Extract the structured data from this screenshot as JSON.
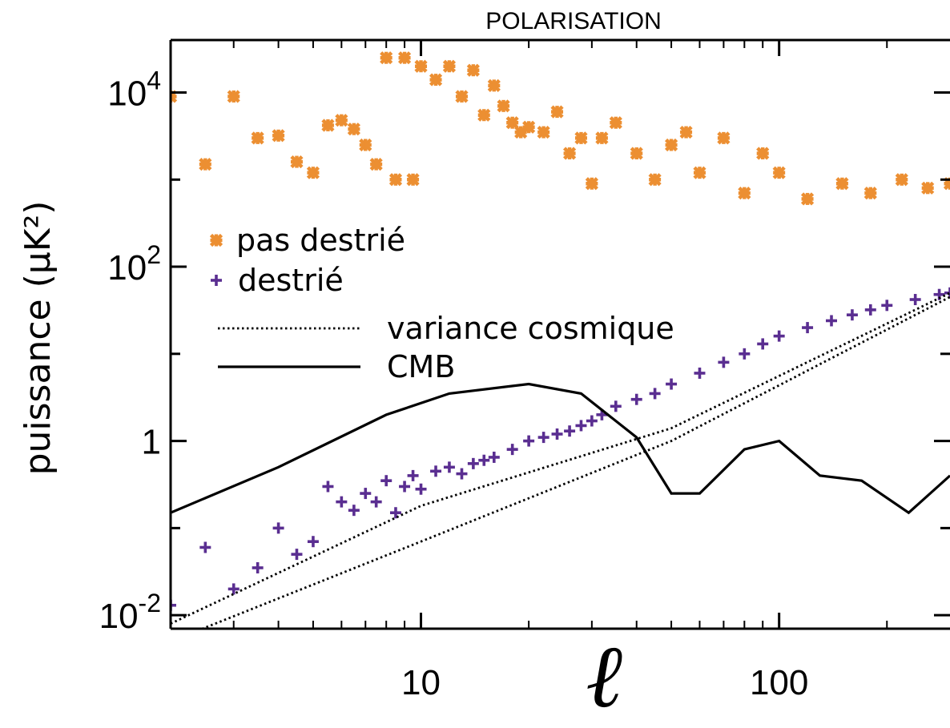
{
  "chart_data": {
    "type": "scatter",
    "title": "POLARISATION",
    "xlabel": "ℓ",
    "ylabel": "puissance (μK²)",
    "xscale": "log",
    "yscale": "log",
    "xlim": [
      2,
      300
    ],
    "ylim": [
      0.007,
      40000
    ],
    "grid": false,
    "legend_position": "left",
    "xticks": [
      {
        "value": 10,
        "label": "10"
      },
      {
        "value": 100,
        "label": "100"
      }
    ],
    "yticks": [
      {
        "value": 0.01,
        "base": "10",
        "exp": "-2"
      },
      {
        "value": 1,
        "base": "1",
        "exp": ""
      },
      {
        "value": 100,
        "base": "10",
        "exp": "2"
      },
      {
        "value": 10000,
        "base": "10",
        "exp": "4"
      }
    ],
    "yminor": [
      0.1,
      10,
      1000
    ],
    "series": [
      {
        "name": "pas destrié",
        "kind": "scatter",
        "marker": "asterisk",
        "color": "#ec8f32",
        "points": [
          [
            2,
            9000
          ],
          [
            2.5,
            1500
          ],
          [
            3,
            9000
          ],
          [
            3.5,
            3000
          ],
          [
            4,
            3200
          ],
          [
            4.5,
            1600
          ],
          [
            5,
            1200
          ],
          [
            5.5,
            4200
          ],
          [
            6,
            4800
          ],
          [
            6.5,
            3800
          ],
          [
            7,
            2500
          ],
          [
            7.5,
            1500
          ],
          [
            8,
            25000
          ],
          [
            8.5,
            1000
          ],
          [
            9,
            25000
          ],
          [
            9.5,
            1000
          ],
          [
            10,
            20000
          ],
          [
            11,
            14000
          ],
          [
            12,
            20000
          ],
          [
            13,
            9000
          ],
          [
            14,
            18000
          ],
          [
            15,
            5500
          ],
          [
            16,
            12000
          ],
          [
            17,
            7000
          ],
          [
            18,
            4500
          ],
          [
            19,
            3500
          ],
          [
            20,
            4000
          ],
          [
            22,
            3500
          ],
          [
            24,
            6000
          ],
          [
            26,
            2000
          ],
          [
            28,
            3000
          ],
          [
            30,
            900
          ],
          [
            32,
            3000
          ],
          [
            35,
            4500
          ],
          [
            40,
            2000
          ],
          [
            45,
            1000
          ],
          [
            50,
            2500
          ],
          [
            55,
            3500
          ],
          [
            60,
            1200
          ],
          [
            70,
            3000
          ],
          [
            80,
            700
          ],
          [
            90,
            2000
          ],
          [
            100,
            1200
          ],
          [
            120,
            600
          ],
          [
            150,
            900
          ],
          [
            180,
            700
          ],
          [
            220,
            1000
          ],
          [
            260,
            800
          ],
          [
            300,
            900
          ]
        ]
      },
      {
        "name": "destrié",
        "kind": "scatter",
        "marker": "plus",
        "color": "#5a2e91",
        "points": [
          [
            2,
            0.013
          ],
          [
            2.5,
            0.06
          ],
          [
            3,
            0.02
          ],
          [
            3.5,
            0.035
          ],
          [
            4,
            0.1
          ],
          [
            4.5,
            0.05
          ],
          [
            5,
            0.07
          ],
          [
            5.5,
            0.3
          ],
          [
            6,
            0.2
          ],
          [
            6.5,
            0.16
          ],
          [
            7,
            0.25
          ],
          [
            7.5,
            0.2
          ],
          [
            8,
            0.35
          ],
          [
            8.5,
            0.15
          ],
          [
            9,
            0.3
          ],
          [
            9.5,
            0.4
          ],
          [
            10,
            0.28
          ],
          [
            11,
            0.45
          ],
          [
            12,
            0.5
          ],
          [
            13,
            0.42
          ],
          [
            14,
            0.55
          ],
          [
            15,
            0.6
          ],
          [
            16,
            0.65
          ],
          [
            18,
            0.8
          ],
          [
            20,
            1.0
          ],
          [
            22,
            1.1
          ],
          [
            24,
            1.2
          ],
          [
            26,
            1.3
          ],
          [
            28,
            1.5
          ],
          [
            30,
            1.7
          ],
          [
            32,
            2.0
          ],
          [
            35,
            2.5
          ],
          [
            40,
            3.0
          ],
          [
            45,
            3.5
          ],
          [
            50,
            4.5
          ],
          [
            60,
            6.0
          ],
          [
            70,
            8.0
          ],
          [
            80,
            10
          ],
          [
            90,
            13
          ],
          [
            100,
            16
          ],
          [
            120,
            20
          ],
          [
            140,
            24
          ],
          [
            160,
            28
          ],
          [
            180,
            32
          ],
          [
            200,
            36
          ],
          [
            240,
            42
          ],
          [
            280,
            48
          ],
          [
            300,
            50
          ]
        ]
      },
      {
        "name": "variance cosmique",
        "kind": "line",
        "style": "dotted",
        "color": "#000000",
        "points": [
          [
            2,
            0.008
          ],
          [
            10,
            0.18
          ],
          [
            50,
            1.4
          ],
          [
            300,
            50
          ]
        ]
      },
      {
        "name": "variance cosmique",
        "kind": "line",
        "style": "dotted",
        "color": "#000000",
        "points": [
          [
            2,
            0.005
          ],
          [
            10,
            0.07
          ],
          [
            50,
            1.0
          ],
          [
            300,
            45
          ]
        ]
      },
      {
        "name": "CMB",
        "kind": "line",
        "style": "solid",
        "color": "#000000",
        "points": [
          [
            2,
            0.15
          ],
          [
            4,
            0.5
          ],
          [
            8,
            2.0
          ],
          [
            12,
            3.5
          ],
          [
            20,
            4.5
          ],
          [
            28,
            3.5
          ],
          [
            40,
            1.1
          ],
          [
            50,
            0.25
          ],
          [
            60,
            0.25
          ],
          [
            80,
            0.8
          ],
          [
            100,
            1.0
          ],
          [
            130,
            0.4
          ],
          [
            170,
            0.35
          ],
          [
            230,
            0.15
          ],
          [
            300,
            0.4
          ]
        ]
      }
    ],
    "legend": [
      {
        "label": "pas destrié",
        "marker": "asterisk",
        "color": "#ec8f32"
      },
      {
        "label": "destrié",
        "marker": "plus",
        "color": "#5a2e91"
      },
      {
        "label": "variance cosmique",
        "line": "dotted",
        "color": "#000000"
      },
      {
        "label": "CMB",
        "line": "solid",
        "color": "#000000"
      }
    ]
  }
}
